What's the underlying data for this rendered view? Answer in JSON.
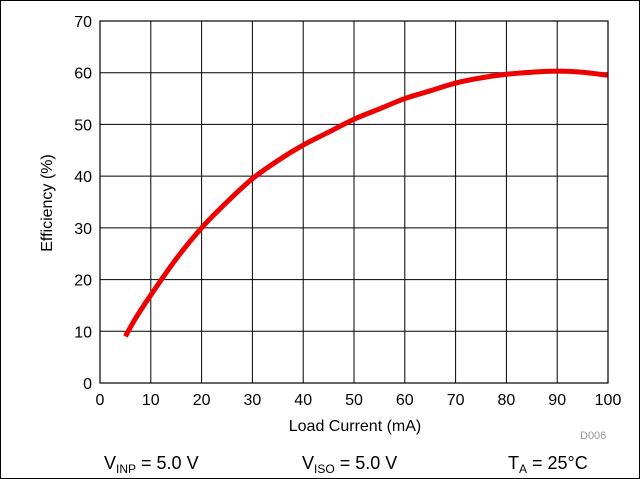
{
  "chart_data": {
    "type": "line",
    "title": "",
    "xlabel": "Load Current (mA)",
    "ylabel": "Efficiency (%)",
    "xlim": [
      0,
      100
    ],
    "ylim": [
      0,
      70
    ],
    "xticks": [
      "0",
      "10",
      "20",
      "30",
      "40",
      "50",
      "60",
      "70",
      "80",
      "90",
      "100"
    ],
    "yticks": [
      "0",
      "10",
      "20",
      "30",
      "40",
      "50",
      "60",
      "70"
    ],
    "grid": true,
    "series": [
      {
        "color": "#ee0000",
        "x": [
          5,
          7,
          10,
          15,
          20,
          25,
          30,
          35,
          40,
          45,
          50,
          55,
          60,
          65,
          70,
          75,
          80,
          85,
          90,
          95,
          100
        ],
        "y": [
          9,
          12.5,
          17,
          24,
          30,
          35,
          39.5,
          43,
          46,
          48.5,
          51,
          53,
          55,
          56.5,
          58,
          59,
          59.7,
          60.1,
          60.3,
          60.1,
          59.5
        ]
      }
    ]
  },
  "conditions": {
    "vinp": {
      "var": "V",
      "sub": "INP",
      "val": " = 5.0 V"
    },
    "viso": {
      "var": "V",
      "sub": "ISO",
      "val": " = 5.0 V"
    },
    "ta": {
      "var": "T",
      "sub": "A",
      "val": " = 25°C"
    }
  },
  "figure_code": "D006"
}
